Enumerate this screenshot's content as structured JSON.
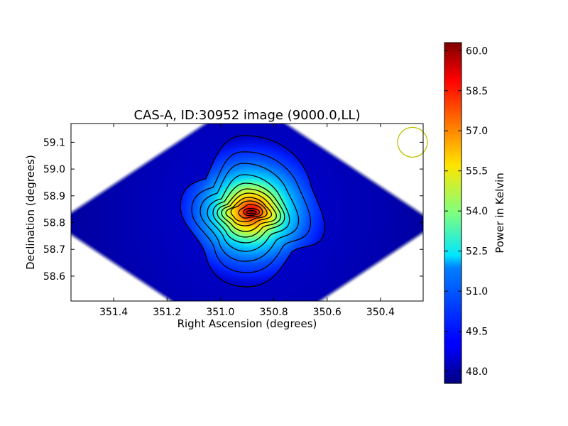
{
  "chart_data": {
    "type": "heatmap",
    "title": "CAS-A, ID:30952 image (9000.0,LL)",
    "xlabel": "Right Ascension (degrees)",
    "ylabel": "Declination (degrees)",
    "xlim": [
      351.56,
      350.24
    ],
    "ylim": [
      58.507,
      59.17
    ],
    "x_ticks": [
      {
        "value": 351.4,
        "label": "351.4"
      },
      {
        "value": 351.2,
        "label": "351.2"
      },
      {
        "value": 351.0,
        "label": "351.0"
      },
      {
        "value": 350.8,
        "label": "350.8"
      },
      {
        "value": 350.6,
        "label": "350.6"
      },
      {
        "value": 350.4,
        "label": "350.4"
      }
    ],
    "y_ticks": [
      {
        "value": 58.6,
        "label": "58.6"
      },
      {
        "value": 58.7,
        "label": "58.7"
      },
      {
        "value": 58.8,
        "label": "58.8"
      },
      {
        "value": 58.9,
        "label": "58.9"
      },
      {
        "value": 59.0,
        "label": "59.0"
      },
      {
        "value": 59.1,
        "label": "59.1"
      }
    ],
    "colorbar": {
      "label": "Power in Kelvin",
      "colormap": "jet",
      "range": [
        47.55,
        60.3
      ],
      "ticks": [
        {
          "value": 48.0,
          "label": "48.0"
        },
        {
          "value": 49.5,
          "label": "49.5"
        },
        {
          "value": 51.0,
          "label": "51.0"
        },
        {
          "value": 52.5,
          "label": "52.5"
        },
        {
          "value": 54.0,
          "label": "54.0"
        },
        {
          "value": 55.5,
          "label": "55.5"
        },
        {
          "value": 57.0,
          "label": "57.0"
        },
        {
          "value": 58.5,
          "label": "58.5"
        },
        {
          "value": 60.0,
          "label": "60.0"
        }
      ]
    },
    "peak": {
      "ra": 350.88,
      "dec": 58.835,
      "value": 60.3
    },
    "background_value": 47.7,
    "beam_circle": {
      "ra": 350.28,
      "dec": 59.1,
      "color": "#bfbf00"
    },
    "contour_color": "#000000",
    "grid": false
  }
}
